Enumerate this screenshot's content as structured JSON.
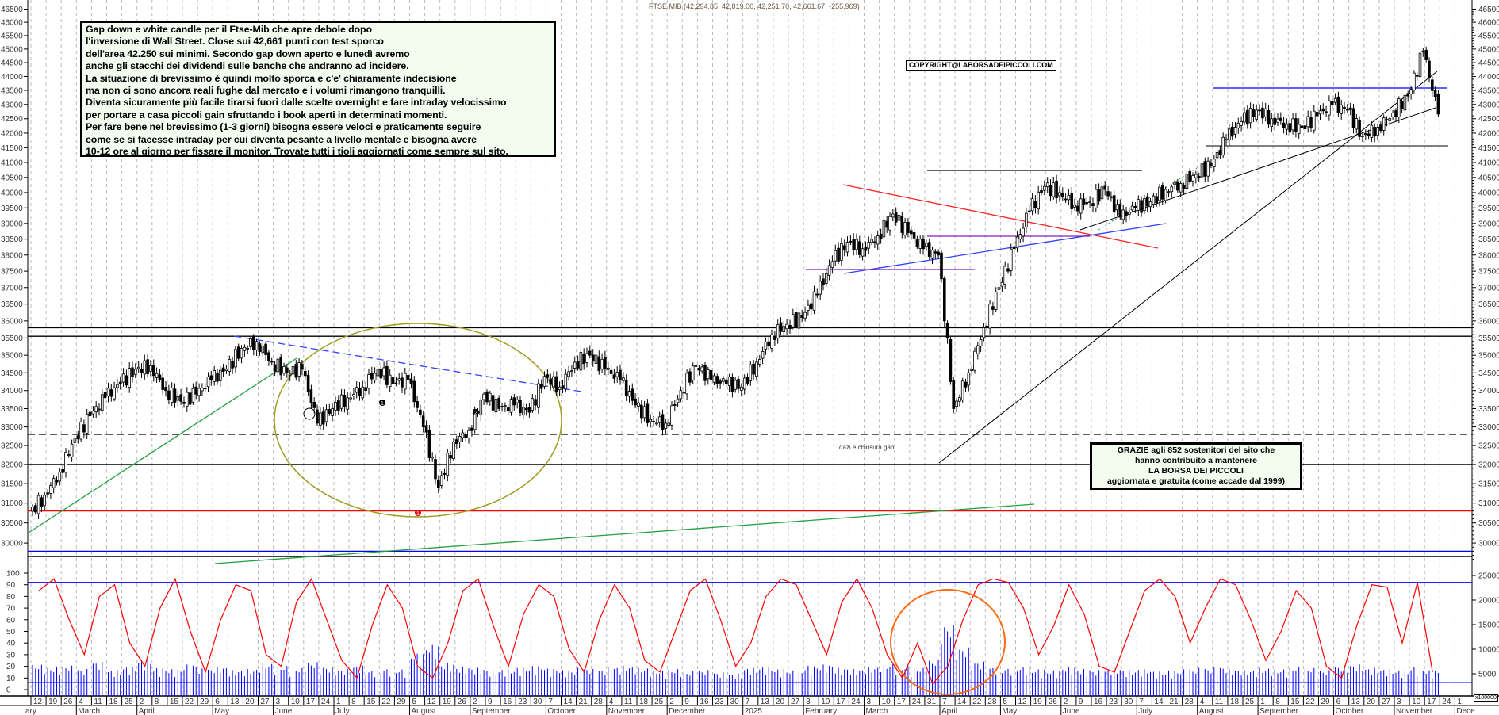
{
  "title": "FTSE MIB (42,294.85, 42,819.00, 42,251.70, 42,661.67, -255.969)",
  "copyright": "COPYRIGHT@LABORSADEIPICCOLI.COM",
  "note": {
    "lines": [
      "Gap down e white candle per il Ftse-Mib che apre debole dopo",
      "l'inversione di Wall Street. Close sui 42,661 punti con test sporco",
      "dell'area 42.250 sui minimi. Secondo gap down aperto e lunedì avremo",
      "anche gli stacchi dei dividendi sulle banche che andranno ad incidere.",
      "La situazione di brevissimo è quindi molto sporca e c'e' chiaramente indecisione",
      "ma non ci sono ancora reali fughe dal mercato e i volumi rimangono tranquilli.",
      "Diventa sicuramente più facile tirarsi fuori dalle scelte overnight e fare intraday velocissimo",
      "per portare a casa piccoli gain sfruttando i book aperti in determinati momenti.",
      "Per fare bene nel brevissimo (1-3 giorni) bisogna essere veloci e praticamente seguire",
      "come se si facesse intraday per cui diventa pesante a livello mentale e bisogna avere",
      "10-12 ore al giorno per fissare il monitor.  Trovate tutti i tioli aggiornati come sempre sul sito."
    ]
  },
  "thanks": {
    "lines": [
      "GRAZIE agli 852  sostenitori del sito che",
      "hanno contribuito a mantenere",
      "LA BORSA DEI PICCOLI",
      "aggiornata e gratuita (come accade dal 1999)"
    ]
  },
  "annotation_dazi": "dazi e chiusura gap",
  "markers": [
    "1",
    "2",
    "1"
  ],
  "volume_unit": "x100000",
  "colors": {
    "candle_up": "#ffffff",
    "candle_down": "#000000",
    "oscillator": "#ff0000",
    "volume": "#0000ff",
    "support_red": "#ff0000",
    "support_blue": "#0000ff",
    "trend_green": "#22a040",
    "ellipse_olive": "#a09a20",
    "ellipse_orange": "#ff6a10",
    "note_bg": "#f2fdf0"
  },
  "chart_data": [
    {
      "type": "candlestick",
      "name": "FTSE MIB",
      "scale": "log",
      "ylim": [
        29500,
        46500
      ],
      "y_ticks": [
        46500,
        46000,
        45500,
        45000,
        44500,
        44000,
        43500,
        43000,
        42500,
        42000,
        41500,
        41000,
        40500,
        40000,
        39500,
        39000,
        38500,
        38000,
        37500,
        37000,
        36500,
        36000,
        35500,
        35000,
        34500,
        34000,
        33500,
        33000,
        32500,
        32000,
        31500,
        31000,
        30500,
        30000
      ],
      "grid": "vertical dashed weekly",
      "weekly_closes": [
        31200,
        31800,
        32700,
        33300,
        33800,
        34200,
        34600,
        34700,
        34000,
        33700,
        33900,
        34300,
        34600,
        35200,
        35400,
        34800,
        34500,
        34600,
        33100,
        33500,
        33800,
        34100,
        34600,
        34200,
        34300,
        33000,
        31400,
        32600,
        32900,
        33900,
        33500,
        33600,
        33400,
        34400,
        34100,
        34800,
        35000,
        34600,
        34300,
        33600,
        33200,
        33100,
        34000,
        34700,
        34300,
        34200,
        34100,
        34800,
        35600,
        35900,
        36100,
        36800,
        37800,
        38400,
        38200,
        38600,
        39300,
        38700,
        38200,
        38000,
        33500,
        34500,
        35800,
        37000,
        38200,
        39400,
        40200,
        40000,
        39600,
        39700,
        40100,
        39200,
        39500,
        39700,
        40100,
        40300,
        40600,
        40900,
        41800,
        42400,
        42800,
        42500,
        42300,
        42200,
        42600,
        43000,
        42800,
        41900,
        42200,
        42700,
        43300,
        44900,
        42661
      ],
      "horizontal_levels": [
        {
          "value": 35800,
          "color": "#000000",
          "style": "solid"
        },
        {
          "value": 35550,
          "color": "#000000",
          "style": "solid"
        },
        {
          "value": 32800,
          "color": "#000000",
          "style": "dashed"
        },
        {
          "value": 32000,
          "color": "#000000",
          "style": "solid"
        },
        {
          "value": 30800,
          "color": "#ff0000",
          "style": "solid"
        },
        {
          "value": 29800,
          "color": "#0000ff",
          "style": "solid"
        }
      ]
    },
    {
      "type": "line+bar",
      "oscillator_range": [
        0,
        100
      ],
      "oscillator_ticks": [
        100,
        90,
        80,
        70,
        60,
        50,
        40,
        30,
        20,
        10,
        0
      ],
      "oscillator_levels": [
        92,
        6
      ],
      "oscillator_weekly": [
        85,
        95,
        60,
        30,
        80,
        90,
        40,
        20,
        70,
        95,
        50,
        15,
        60,
        90,
        85,
        30,
        20,
        75,
        95,
        60,
        25,
        10,
        55,
        90,
        70,
        20,
        10,
        40,
        85,
        95,
        55,
        20,
        65,
        90,
        80,
        35,
        15,
        60,
        90,
        70,
        25,
        15,
        50,
        85,
        95,
        60,
        20,
        40,
        80,
        95,
        90,
        60,
        30,
        75,
        95,
        70,
        30,
        10,
        40,
        5,
        20,
        60,
        90,
        95,
        92,
        70,
        30,
        55,
        90,
        65,
        20,
        15,
        50,
        85,
        95,
        80,
        40,
        70,
        95,
        90,
        60,
        25,
        50,
        85,
        70,
        20,
        10,
        55,
        90,
        88,
        40,
        92,
        15
      ],
      "volume_ticks": [
        25000,
        20000,
        15000,
        10000,
        5000
      ],
      "volume_weekly": [
        6000,
        5500,
        5800,
        5200,
        6500,
        5000,
        5600,
        7000,
        5400,
        5200,
        6000,
        5300,
        5600,
        5000,
        5200,
        6200,
        5800,
        5400,
        6400,
        5600,
        5200,
        5800,
        5000,
        5300,
        5200,
        8000,
        9500,
        6200,
        5600,
        5400,
        5000,
        5200,
        5500,
        5800,
        5300,
        5000,
        5400,
        5200,
        5600,
        5800,
        5400,
        5000,
        5200,
        4800,
        5000,
        4600,
        4400,
        5400,
        5600,
        5200,
        5000,
        5800,
        6000,
        5400,
        5200,
        5600,
        6200,
        5800,
        5400,
        6800,
        13000,
        9000,
        6500,
        5600,
        5400,
        5600,
        5200,
        5000,
        5600,
        5200,
        5000,
        5400,
        5000,
        5200,
        4800,
        5000,
        5200,
        5400,
        5600,
        5200,
        5000,
        5400,
        5200,
        5600,
        5400,
        5000,
        5800,
        6000,
        5400,
        5200,
        5000,
        5600,
        5000
      ]
    }
  ],
  "x_axis": {
    "day_labels": [
      "12",
      "19",
      "26",
      "4",
      "11",
      "18",
      "25",
      "2",
      "8",
      "15",
      "22",
      "29",
      "6",
      "13",
      "20",
      "27",
      "3",
      "10",
      "17",
      "24",
      "1",
      "8",
      "15",
      "22",
      "29",
      "5",
      "12",
      "19",
      "26",
      "2",
      "9",
      "16",
      "23",
      "30",
      "7",
      "14",
      "21",
      "28",
      "4",
      "11",
      "18",
      "25",
      "2",
      "9",
      "16",
      "23",
      "30",
      "7",
      "13",
      "20",
      "27",
      "3",
      "10",
      "17",
      "24",
      "3",
      "10",
      "17",
      "24",
      "31",
      "7",
      "14",
      "22",
      "28",
      "5",
      "12",
      "19",
      "26",
      "2",
      "9",
      "16",
      "23",
      "30",
      "7",
      "14",
      "21",
      "28",
      "4",
      "11",
      "18",
      "25",
      "1",
      "8",
      "15",
      "22",
      "29",
      "6",
      "13",
      "20",
      "27",
      "3",
      "10",
      "17",
      "24",
      "1"
    ],
    "months": [
      {
        "label": "ary",
        "week": -1
      },
      {
        "label": "March",
        "week": 3
      },
      {
        "label": "April",
        "week": 7
      },
      {
        "label": "May",
        "week": 12
      },
      {
        "label": "June",
        "week": 16
      },
      {
        "label": "July",
        "week": 20
      },
      {
        "label": "August",
        "week": 25
      },
      {
        "label": "September",
        "week": 29
      },
      {
        "label": "October",
        "week": 34
      },
      {
        "label": "November",
        "week": 38
      },
      {
        "label": "December",
        "week": 42
      },
      {
        "label": "2025",
        "week": 47
      },
      {
        "label": "February",
        "week": 51
      },
      {
        "label": "March",
        "week": 55
      },
      {
        "label": "April",
        "week": 60
      },
      {
        "label": "May",
        "week": 64
      },
      {
        "label": "June",
        "week": 68
      },
      {
        "label": "July",
        "week": 73
      },
      {
        "label": "August",
        "week": 77
      },
      {
        "label": "September",
        "week": 81
      },
      {
        "label": "October",
        "week": 86
      },
      {
        "label": "November",
        "week": 90
      },
      {
        "label": "Dece",
        "week": 94
      }
    ]
  }
}
